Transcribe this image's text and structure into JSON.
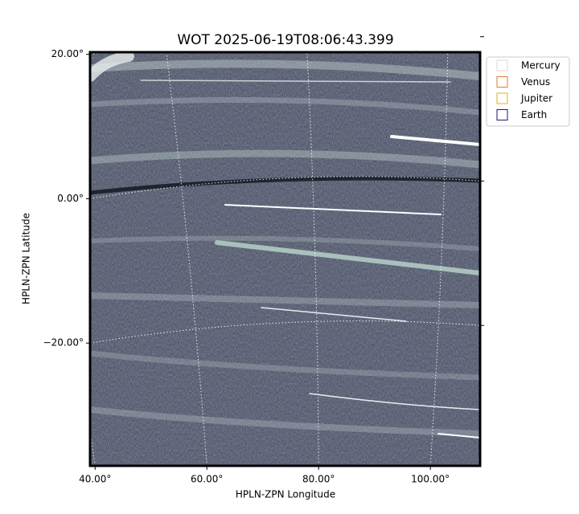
{
  "chart_data": {
    "type": "image",
    "title": "WOT 2025-06-19T08:06:43.399",
    "x_label": "HPLN-ZPN Longitude",
    "y_label": "HPLN-ZPN Latitude",
    "xlim": [
      39.1,
      108.9
    ],
    "ylim": [
      -37.0,
      20.3
    ],
    "xticks": [
      {
        "value": 40,
        "label": "40.00°"
      },
      {
        "value": 60,
        "label": "60.00°"
      },
      {
        "value": 80,
        "label": "80.00°"
      },
      {
        "value": 100,
        "label": "100.00°"
      }
    ],
    "yticks": [
      {
        "value": -20,
        "label": "−20.00°"
      },
      {
        "value": 0,
        "label": "0.00°"
      },
      {
        "value": 20,
        "label": "20.00°"
      }
    ],
    "grid": true,
    "series": [
      {
        "name": "Mercury",
        "color": "#d9d9d9"
      },
      {
        "name": "Venus",
        "color": "#e07b39"
      },
      {
        "name": "Jupiter",
        "color": "#e0b020"
      },
      {
        "name": "Earth",
        "color": "#1a1a6e"
      }
    ]
  }
}
